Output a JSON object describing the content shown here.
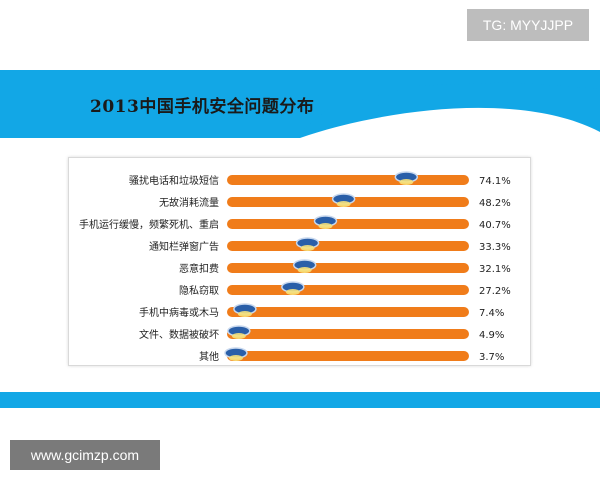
{
  "watermarks": {
    "tg": "TG: MYYJJPP",
    "site": "www.gcimzp.com"
  },
  "colors": {
    "banner": "#12a7e6",
    "bar": "#f07c1a",
    "marker": "#2a5fa8"
  },
  "chart_data": {
    "type": "bar",
    "orientation": "horizontal",
    "title": "2013中国手机安全问题分布",
    "categories": [
      "骚扰电话和垃圾短信",
      "无故消耗流量",
      "手机运行缓慢，频繁死机、重启",
      "通知栏弹窗广告",
      "恶意扣费",
      "隐私窃取",
      "手机中病毒或木马",
      "文件、数据被破坏",
      "其他"
    ],
    "values": [
      74.1,
      48.2,
      40.7,
      33.3,
      32.1,
      27.2,
      7.4,
      4.9,
      3.7
    ],
    "value_labels": [
      "74.1%",
      "48.2%",
      "40.7%",
      "33.3%",
      "32.1%",
      "27.2%",
      "7.4%",
      "4.9%",
      "3.7%"
    ],
    "xlim": [
      0,
      100
    ],
    "grid": false,
    "legend": "none"
  }
}
